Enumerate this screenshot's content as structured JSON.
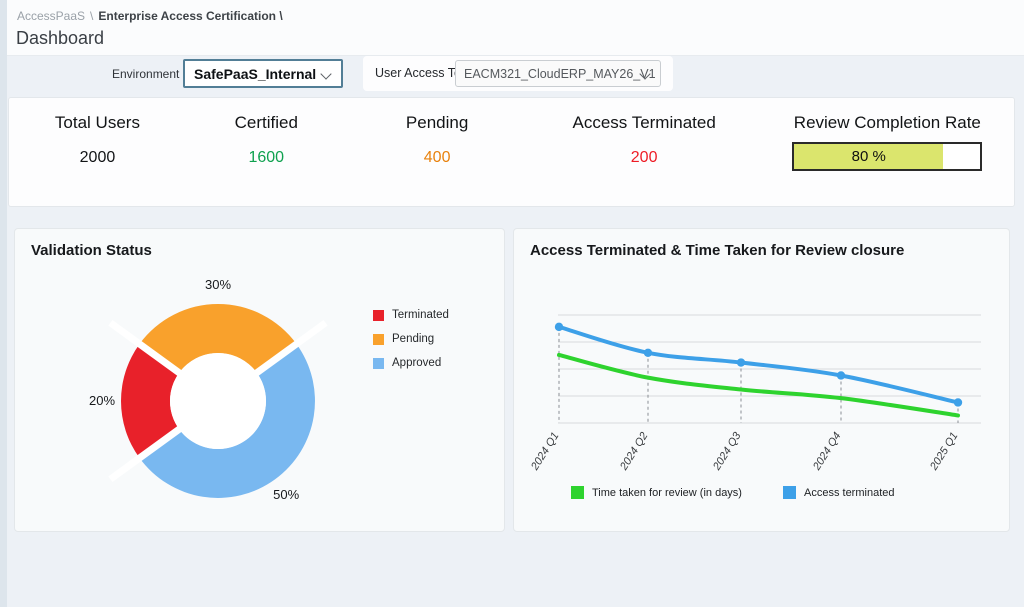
{
  "breadcrumb": {
    "root": "AccessPaaS",
    "separator": "\\",
    "section": "Enterprise Access Certification \\"
  },
  "page_title": "Dashboard",
  "filters": {
    "environment_label": "Environment",
    "environment_value": "SafePaaS_Internal",
    "user_access_test_label": "User Access Test",
    "user_access_test_value": "EACM321_CloudERP_MAY26_V1"
  },
  "stats": [
    {
      "label": "Total Users",
      "value": "2000",
      "color": "#121416"
    },
    {
      "label": "Certified",
      "value": "1600",
      "color": "#0fa14f"
    },
    {
      "label": "Pending",
      "value": "400",
      "color": "#e8820e"
    },
    {
      "label": "Access Terminated",
      "value": "200",
      "color": "#ee1c25"
    }
  ],
  "review_completion": {
    "label": "Review Completion Rate",
    "percent": 80,
    "display": "80 %",
    "fill_color": "#dbe56d"
  },
  "chart_data": [
    {
      "type": "pie",
      "donut": true,
      "title": "Validation Status",
      "labels": [
        "Terminated",
        "Pending",
        "Approved"
      ],
      "values": [
        20,
        30,
        50
      ],
      "slice_labels": [
        "20%",
        "30%",
        "50%"
      ],
      "colors": [
        "#e8212a",
        "#f9a12c",
        "#79b8f0"
      ],
      "legend_position": "right"
    },
    {
      "type": "line",
      "title": "Access Terminated & Time Taken for Review closure",
      "categories": [
        "2024 Q1",
        "2024 Q2",
        "2024 Q3",
        "2024 Q4",
        "2025 Q1"
      ],
      "series": [
        {
          "name": "Time taken for review (in days)",
          "color": "#2ed32e",
          "values": [
            63,
            42,
            31,
            23,
            7
          ],
          "markers": false
        },
        {
          "name": "Access terminated",
          "color": "#3da0e8",
          "values": [
            89,
            65,
            56,
            44,
            19
          ],
          "markers": true
        }
      ],
      "ylim": [
        0,
        100
      ],
      "grid": true,
      "legend_position": "bottom"
    }
  ]
}
